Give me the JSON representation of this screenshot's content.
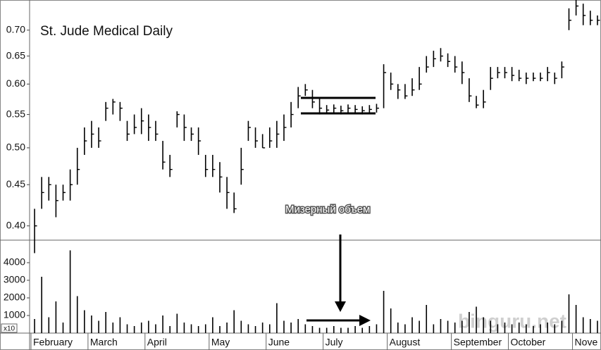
{
  "chart_data": [
    {
      "type": "ohlc",
      "title": "St. Jude Medical Daily",
      "yscale": "log",
      "color": "#000000",
      "ylim": [
        0.384,
        0.763
      ],
      "yticks": [
        {
          "value": 0.4,
          "label": "0.40"
        },
        {
          "value": 0.45,
          "label": "0.45"
        },
        {
          "value": 0.5,
          "label": "0.50"
        },
        {
          "value": 0.55,
          "label": "0.55"
        },
        {
          "value": 0.6,
          "label": "0.60"
        },
        {
          "value": 0.65,
          "label": "0.65"
        },
        {
          "value": 0.7,
          "label": "0.70"
        }
      ],
      "categories": [
        "February",
        null,
        null,
        null,
        null,
        null,
        null,
        null,
        "March",
        null,
        null,
        null,
        null,
        null,
        null,
        null,
        "April",
        null,
        null,
        null,
        null,
        null,
        null,
        null,
        null,
        "May",
        null,
        null,
        null,
        null,
        null,
        null,
        null,
        "June",
        null,
        null,
        null,
        null,
        null,
        null,
        null,
        "July",
        null,
        null,
        null,
        null,
        null,
        null,
        null,
        null,
        "August",
        null,
        null,
        null,
        null,
        null,
        null,
        null,
        null,
        "September",
        null,
        null,
        null,
        null,
        null,
        null,
        null,
        "October",
        null,
        null,
        null,
        null,
        null,
        null,
        null,
        null,
        "Nove",
        null,
        null,
        null
      ],
      "high": [
        0.42,
        0.46,
        0.46,
        0.45,
        0.45,
        0.47,
        0.5,
        0.53,
        0.54,
        0.53,
        0.57,
        0.575,
        0.57,
        0.54,
        0.55,
        0.56,
        0.55,
        0.54,
        0.51,
        0.49,
        0.555,
        0.55,
        0.53,
        0.53,
        0.49,
        0.49,
        0.48,
        0.46,
        0.44,
        0.5,
        0.54,
        0.53,
        0.52,
        0.53,
        0.54,
        0.55,
        0.57,
        0.595,
        0.6,
        0.59,
        0.575,
        0.565,
        0.566,
        0.564,
        0.566,
        0.565,
        0.563,
        0.565,
        0.567,
        0.635,
        0.62,
        0.6,
        0.6,
        0.61,
        0.63,
        0.65,
        0.66,
        0.665,
        0.655,
        0.65,
        0.64,
        0.61,
        0.58,
        0.59,
        0.63,
        0.63,
        0.63,
        0.63,
        0.625,
        0.62,
        0.62,
        0.62,
        0.63,
        0.62,
        0.64,
        0.745,
        0.765,
        0.755,
        0.74,
        0.73
      ],
      "low": [
        0.37,
        0.42,
        0.43,
        0.41,
        0.43,
        0.43,
        0.45,
        0.49,
        0.5,
        0.5,
        0.54,
        0.55,
        0.54,
        0.51,
        0.52,
        0.52,
        0.51,
        0.51,
        0.47,
        0.46,
        0.53,
        0.51,
        0.51,
        0.49,
        0.46,
        0.46,
        0.44,
        0.42,
        0.415,
        0.45,
        0.51,
        0.5,
        0.5,
        0.5,
        0.5,
        0.51,
        0.53,
        0.56,
        0.58,
        0.56,
        0.55,
        0.551,
        0.552,
        0.55,
        0.552,
        0.551,
        0.55,
        0.552,
        0.553,
        0.56,
        0.59,
        0.575,
        0.575,
        0.58,
        0.59,
        0.62,
        0.63,
        0.64,
        0.63,
        0.62,
        0.6,
        0.57,
        0.56,
        0.56,
        0.59,
        0.61,
        0.61,
        0.605,
        0.605,
        0.6,
        0.605,
        0.605,
        0.605,
        0.6,
        0.61,
        0.7,
        0.73,
        0.71,
        0.71,
        0.71
      ],
      "close": [
        0.4,
        0.44,
        0.45,
        0.43,
        0.44,
        0.45,
        0.47,
        0.51,
        0.52,
        0.51,
        0.56,
        0.57,
        0.56,
        0.52,
        0.53,
        0.54,
        0.53,
        0.52,
        0.48,
        0.47,
        0.55,
        0.53,
        0.52,
        0.51,
        0.47,
        0.47,
        0.46,
        0.44,
        0.42,
        0.47,
        0.53,
        0.51,
        0.5,
        0.51,
        0.52,
        0.53,
        0.55,
        0.58,
        0.59,
        0.57,
        0.56,
        0.557,
        0.56,
        0.556,
        0.56,
        0.558,
        0.556,
        0.558,
        0.56,
        0.62,
        0.6,
        0.59,
        0.58,
        0.59,
        0.6,
        0.63,
        0.645,
        0.65,
        0.64,
        0.63,
        0.62,
        0.58,
        0.565,
        0.57,
        0.61,
        0.62,
        0.62,
        0.615,
        0.61,
        0.61,
        0.61,
        0.61,
        0.62,
        0.61,
        0.63,
        0.72,
        0.75,
        0.73,
        0.72,
        0.72
      ],
      "annotation": "Мизерный объем",
      "watermark": "binguru.net"
    },
    {
      "type": "volume",
      "color": "#000000",
      "unit_label": "x10",
      "ylim": [
        0,
        5280
      ],
      "yticks": [
        1000,
        2000,
        3000,
        4000
      ],
      "values": [
        800,
        3200,
        900,
        1800,
        600,
        4700,
        2100,
        1300,
        1000,
        700,
        1200,
        600,
        900,
        500,
        400,
        600,
        700,
        500,
        1000,
        400,
        1100,
        600,
        500,
        400,
        500,
        900,
        400,
        600,
        1300,
        700,
        500,
        400,
        600,
        500,
        1700,
        700,
        600,
        800,
        500,
        400,
        300,
        300,
        400,
        300,
        300,
        400,
        300,
        400,
        500,
        2400,
        1400,
        600,
        500,
        900,
        700,
        1600,
        500,
        800,
        700,
        600,
        700,
        1200,
        1500,
        900,
        700,
        500,
        600,
        500,
        600,
        500,
        400,
        500,
        600,
        500,
        700,
        2200,
        1600,
        900,
        800,
        700
      ]
    }
  ]
}
